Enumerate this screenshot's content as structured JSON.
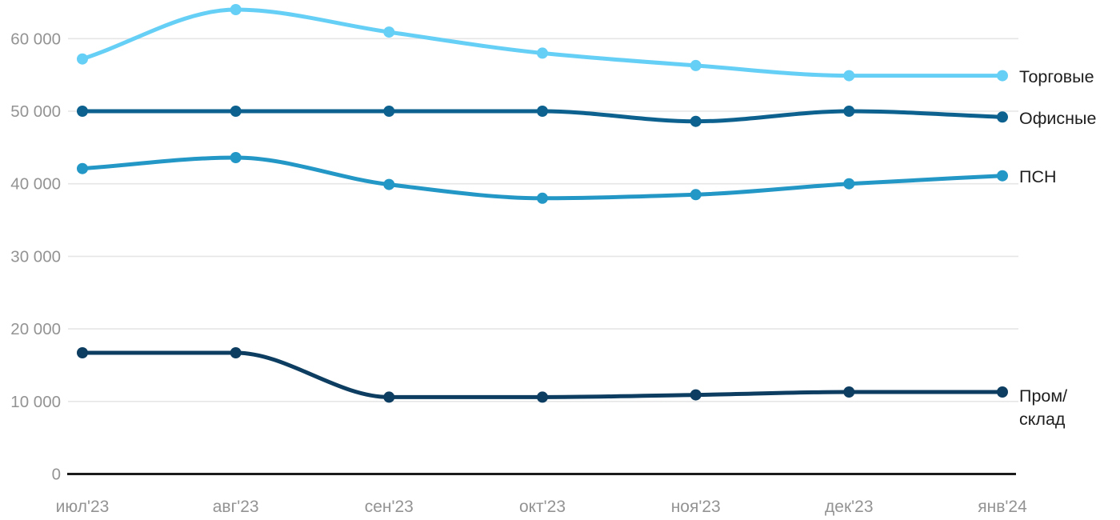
{
  "chart_data": {
    "type": "line",
    "title": "",
    "x_categories": [
      "июл'23",
      "авг'23",
      "сен'23",
      "окт'23",
      "ноя'23",
      "дек'23",
      "янв'24"
    ],
    "series": [
      {
        "name": "Торговые",
        "slug": "torgovye",
        "color": "#66CFF6",
        "label_lines": [
          "Торговые"
        ],
        "values": [
          57200,
          64000,
          60900,
          58000,
          56300,
          54900,
          54900
        ]
      },
      {
        "name": "Офисные",
        "slug": "ofisnye",
        "color": "#0C618E",
        "label_lines": [
          "Офисные"
        ],
        "values": [
          50000,
          50000,
          50000,
          50000,
          48600,
          50000,
          49200
        ]
      },
      {
        "name": "ПСН",
        "slug": "psn",
        "color": "#2397C6",
        "label_lines": [
          "ПСН"
        ],
        "values": [
          42100,
          43600,
          39900,
          38000,
          38500,
          40000,
          41100
        ]
      },
      {
        "name": "Пром/склад",
        "slug": "prom-sklad",
        "color": "#0D3D60",
        "label_lines": [
          "Пром/",
          "склад"
        ],
        "values": [
          16700,
          16700,
          10600,
          10600,
          10900,
          11300,
          11300
        ]
      }
    ],
    "y_axis": {
      "min": 0,
      "max": 65000,
      "tick_step": 10000,
      "tick_values": [
        0,
        10000,
        20000,
        30000,
        40000,
        50000,
        60000
      ],
      "tick_labels": [
        "0",
        "10 000",
        "20 000",
        "30 000",
        "40 000",
        "50 000",
        "60 000"
      ]
    },
    "grid": true,
    "legend_position": "right-end-of-line",
    "line_style": "smooth-spline-with-point-markers",
    "colors": {
      "background": "#FFFFFF",
      "gridline": "#E6E6E6",
      "axis_line": "#1B1B1B",
      "tick_text": "#939393",
      "legend_text": "#1E1E1E"
    }
  }
}
